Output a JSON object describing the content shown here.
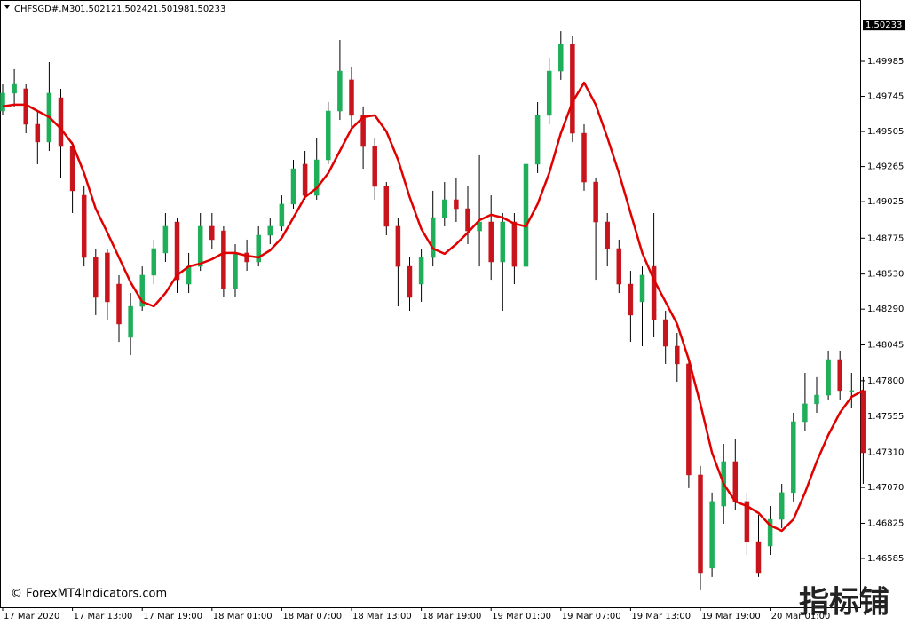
{
  "header": {
    "symbol": "CHFSGD#,M30",
    "ohlc": [
      "1.50212",
      "1.50242",
      "1.50198",
      "1.50233"
    ]
  },
  "chart_data": {
    "type": "candlestick",
    "categories": [
      "17 Mar 2020",
      null,
      null,
      null,
      null,
      null,
      "17 Mar 13:00",
      null,
      null,
      null,
      null,
      null,
      "17 Mar 19:00",
      null,
      null,
      null,
      null,
      null,
      "18 Mar 01:00",
      null,
      null,
      null,
      null,
      null,
      "18 Mar 07:00",
      null,
      null,
      null,
      null,
      null,
      "18 Mar 13:00",
      null,
      null,
      null,
      null,
      null,
      "18 Mar 19:00",
      null,
      null,
      null,
      null,
      null,
      "19 Mar 01:00",
      null,
      null,
      null,
      null,
      null,
      "19 Mar 07:00",
      null,
      null,
      null,
      null,
      null,
      "19 Mar 13:00",
      null,
      null,
      null,
      null,
      null,
      "19 Mar 19:00",
      null,
      null,
      null,
      null,
      null,
      "20 Mar 01:00",
      null,
      null,
      null,
      null,
      null,
      null,
      null,
      null
    ],
    "open": [
      1.49645,
      1.49767,
      1.49797,
      1.49554,
      1.49433,
      1.49736,
      1.49402,
      1.49068,
      1.48643,
      1.48674,
      1.48461,
      1.48097,
      1.48309,
      1.48522,
      1.48674,
      1.48886,
      1.48461,
      1.48582,
      1.48856,
      1.48825,
      1.48431,
      1.48674,
      1.48613,
      1.48795,
      1.48856,
      1.49008,
      1.49281,
      1.49068,
      1.49311,
      1.49645,
      1.49858,
      1.49615,
      1.49402,
      1.49129,
      1.48856,
      1.48582,
      1.48461,
      1.48643,
      1.48916,
      1.49038,
      1.48977,
      1.48825,
      1.48886,
      1.48613,
      1.48886,
      1.48582,
      1.49281,
      1.49615,
      1.49918,
      1.501,
      1.49493,
      1.49159,
      1.48886,
      1.48704,
      1.48461,
      1.4834,
      1.48582,
      1.48218,
      1.48036,
      1.47915,
      1.47156,
      1.46519,
      1.46943,
      1.47247,
      1.46974,
      1.467,
      1.4667,
      1.46852,
      1.47035,
      1.4752,
      1.47642,
      1.47702,
      1.47945,
      1.47733,
      1.47733
    ],
    "high": [
      1.49827,
      1.49931,
      1.49827,
      1.49645,
      1.49979,
      1.49797,
      1.49433,
      1.49129,
      1.48704,
      1.48704,
      1.48522,
      1.484,
      1.48582,
      1.48765,
      1.48947,
      1.48916,
      1.48674,
      1.48947,
      1.48947,
      1.48856,
      1.48734,
      1.48765,
      1.48856,
      1.48916,
      1.49068,
      1.49311,
      1.49372,
      1.49463,
      1.49706,
      1.50131,
      1.49949,
      1.49676,
      1.49463,
      1.49159,
      1.48916,
      1.48643,
      1.48704,
      1.49099,
      1.49159,
      1.4919,
      1.49129,
      1.49342,
      1.49068,
      1.48947,
      1.48947,
      1.49342,
      1.49706,
      1.50009,
      1.50191,
      1.50161,
      1.49554,
      1.4919,
      1.48947,
      1.48765,
      1.48552,
      1.48582,
      1.48947,
      1.48279,
      1.48127,
      1.47945,
      1.47217,
      1.47035,
      1.47368,
      1.47399,
      1.47035,
      1.46882,
      1.46943,
      1.47095,
      1.47581,
      1.47854,
      1.47824,
      1.48006,
      1.48006,
      1.47854,
      1.47824
    ],
    "low": [
      1.49615,
      1.49676,
      1.49493,
      1.49281,
      1.49372,
      1.4919,
      1.48947,
      1.48582,
      1.48249,
      1.48218,
      1.48066,
      1.47975,
      1.48279,
      1.48461,
      1.48613,
      1.484,
      1.484,
      1.48552,
      1.48704,
      1.4837,
      1.4837,
      1.48552,
      1.48582,
      1.48734,
      1.48825,
      1.48977,
      1.49038,
      1.49038,
      1.49281,
      1.49584,
      1.49524,
      1.4925,
      1.49038,
      1.48795,
      1.48309,
      1.48279,
      1.4834,
      1.48582,
      1.48856,
      1.48886,
      1.48734,
      1.48582,
      1.48491,
      1.48279,
      1.48461,
      1.48552,
      1.4922,
      1.49554,
      1.49858,
      1.49433,
      1.49099,
      1.48491,
      1.48582,
      1.484,
      1.48066,
      1.48036,
      1.48097,
      1.47915,
      1.47793,
      1.47065,
      1.46367,
      1.46458,
      1.46822,
      1.46913,
      1.46609,
      1.46458,
      1.46609,
      1.46791,
      1.46974,
      1.47459,
      1.47581,
      1.47672,
      1.47672,
      1.47611,
      1.47095
    ],
    "close": [
      1.49767,
      1.49827,
      1.49554,
      1.49433,
      1.49767,
      1.49402,
      1.49099,
      1.48643,
      1.4837,
      1.4834,
      1.48188,
      1.48309,
      1.48522,
      1.48704,
      1.48856,
      1.48491,
      1.48582,
      1.48856,
      1.48765,
      1.48431,
      1.48674,
      1.48613,
      1.48795,
      1.48856,
      1.49008,
      1.4925,
      1.49068,
      1.49311,
      1.49645,
      1.49918,
      1.49615,
      1.49402,
      1.49129,
      1.48856,
      1.48582,
      1.4837,
      1.48643,
      1.48916,
      1.49038,
      1.48977,
      1.48825,
      1.48886,
      1.48613,
      1.48886,
      1.48582,
      1.49281,
      1.49615,
      1.49918,
      1.501,
      1.49493,
      1.49159,
      1.48886,
      1.48704,
      1.48461,
      1.48249,
      1.48522,
      1.48218,
      1.48036,
      1.47915,
      1.47156,
      1.46488,
      1.46974,
      1.47247,
      1.46974,
      1.467,
      1.46488,
      1.46852,
      1.47035,
      1.4752,
      1.47642,
      1.47702,
      1.47945,
      1.47733,
      1.47733,
      1.47308
    ],
    "up_color": "#1fae5a",
    "down_color": "#c8141c",
    "wick_color": "#000000",
    "ma": {
      "color": "#e00000",
      "values": [
        1.49676,
        1.49688,
        1.49688,
        1.49645,
        1.49603,
        1.49524,
        1.4942,
        1.4922,
        1.48977,
        1.48813,
        1.48643,
        1.48473,
        1.4834,
        1.48309,
        1.484,
        1.48522,
        1.48582,
        1.48601,
        1.48631,
        1.48674,
        1.48674,
        1.48655,
        1.48643,
        1.48692,
        1.48777,
        1.48916,
        1.49056,
        1.49117,
        1.4922,
        1.49372,
        1.49524,
        1.49603,
        1.49615,
        1.49505,
        1.49311,
        1.49056,
        1.48838,
        1.48704,
        1.48668,
        1.48734,
        1.48813,
        1.48898,
        1.48935,
        1.48916,
        1.48874,
        1.48856,
        1.49008,
        1.4922,
        1.49493,
        1.49706,
        1.49839,
        1.49688,
        1.49463,
        1.4922,
        1.48947,
        1.48674,
        1.48491,
        1.4834,
        1.48188,
        1.47945,
        1.47642,
        1.47308,
        1.47095,
        1.46974,
        1.46943,
        1.46895,
        1.4681,
        1.46773,
        1.46852,
        1.47035,
        1.47247,
        1.47429,
        1.47581,
        1.4769,
        1.47733
      ]
    },
    "ylim": [
      1.46251,
      1.50404
    ],
    "yticks": [
      1.49985,
      1.49745,
      1.49505,
      1.49265,
      1.49025,
      1.48775,
      {
        "value": 1.4853,
        "label": "1.48530"
      },
      {
        "value": 1.4829,
        "label": "1.48290"
      },
      1.48045,
      {
        "value": 1.478,
        "label": "1.47800"
      },
      1.47555,
      {
        "value": 1.4731,
        "label": "1.47310"
      },
      {
        "value": 1.4707,
        "label": "1.47070"
      },
      1.46825,
      1.46585
    ],
    "current_price": 1.50233,
    "copyright": "© ForexMT4Indicators.com",
    "watermark": "指标铺"
  }
}
